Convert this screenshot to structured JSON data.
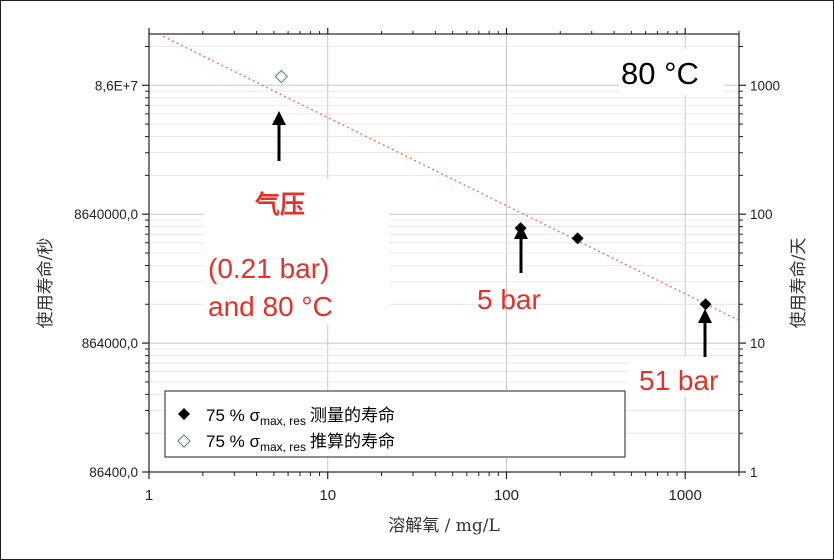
{
  "chart_data": {
    "type": "scatter",
    "x_scale": "log",
    "y_scale": "log",
    "x_label": "溶解氧 / mg/L",
    "y_label_left": "使用寿命/秒",
    "y_label_right": "使用寿命/天",
    "x_ticks": [
      "1",
      "10",
      "100",
      "1000"
    ],
    "y_ticks_left": [
      "86400,0",
      "864000,0",
      "8640000,0",
      "8,6E+7"
    ],
    "y_ticks_right": [
      "1",
      "10",
      "100",
      "1000"
    ],
    "xlim": [
      1,
      2000
    ],
    "ylim_days": [
      1,
      2500
    ],
    "grid": true,
    "series": [
      {
        "name_prefix": "75 % σ",
        "name_sub": "max, res",
        "name_suffix": "测量的寿命",
        "marker": "diamond-filled",
        "color": "#000000",
        "points": [
          {
            "x": 120,
            "y": 78
          },
          {
            "x": 250,
            "y": 65
          },
          {
            "x": 1300,
            "y": 20
          }
        ]
      },
      {
        "name_prefix": "75 % σ",
        "name_sub": "max, res",
        "name_suffix": "推算的寿命",
        "marker": "diamond-open",
        "color": "#5f8f8f",
        "points": [
          {
            "x": 5.5,
            "y": 1170
          }
        ]
      }
    ],
    "trendline": {
      "style": "dotted",
      "color": "#e8735f",
      "points": [
        {
          "x": 1.2,
          "y": 2400
        },
        {
          "x": 2000,
          "y": 15
        }
      ]
    },
    "annotations": {
      "temperature": "80 °C",
      "air_line1": "气压",
      "air_line2": "(0.21 bar)",
      "air_line3": "and 80 °C",
      "five_bar": "5 bar",
      "fiftyone_bar": "51 bar"
    },
    "legend_position": "bottom-left",
    "colors": {
      "annotation_red": "#e0322a",
      "trendline": "#e8735f",
      "grid": "#c8c8c8"
    }
  }
}
